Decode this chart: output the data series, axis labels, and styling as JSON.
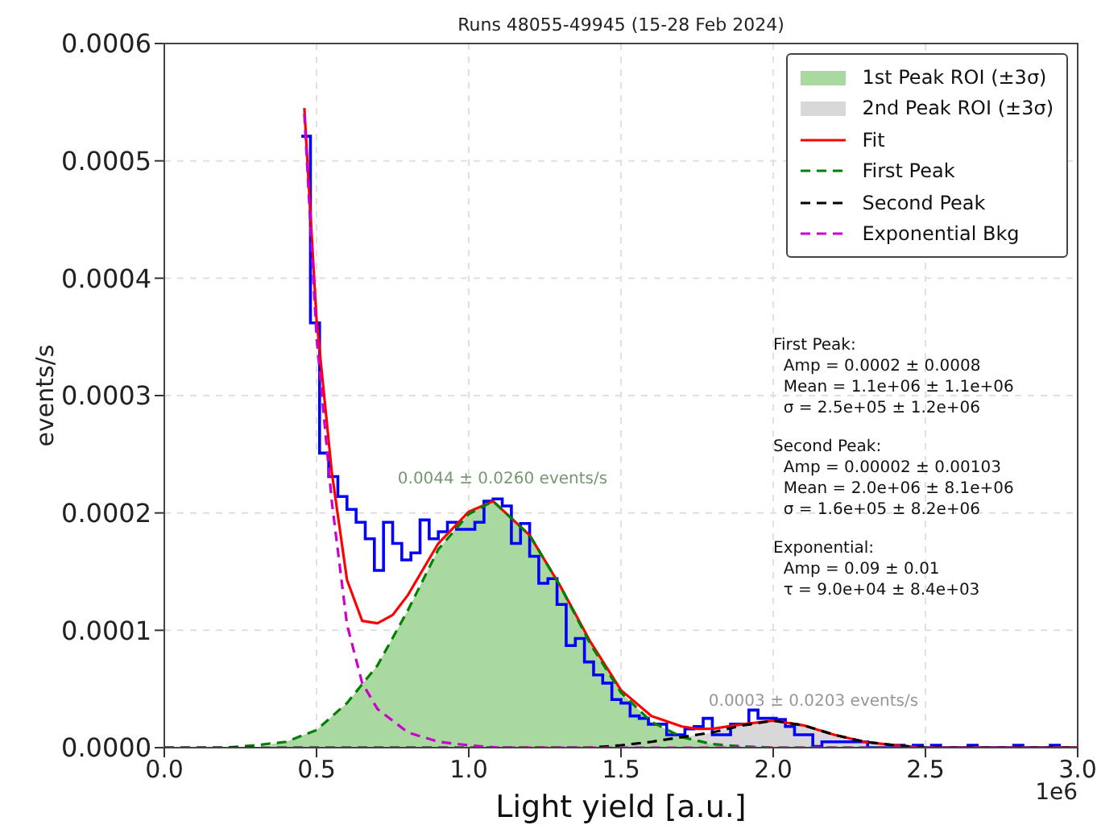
{
  "chart_data": {
    "type": "histogram",
    "title": "Runs 48055-49945 (15-28 Feb 2024)",
    "xlabel": "Light yield [a.u.]",
    "ylabel": "events/s",
    "bins": [
      0.45,
      0.48,
      0.51,
      0.54,
      0.57,
      0.6,
      0.63,
      0.66,
      0.69,
      0.72,
      0.75,
      0.78,
      0.81,
      0.84,
      0.87,
      0.9,
      0.93,
      0.96,
      0.99,
      1.02,
      1.05,
      1.08,
      1.11,
      1.14,
      1.17,
      1.2,
      1.23,
      1.26,
      1.29,
      1.32,
      1.35,
      1.38,
      1.41,
      1.44,
      1.47,
      1.5,
      1.53,
      1.56,
      1.59,
      1.62,
      1.65,
      1.68,
      1.71,
      1.74,
      1.77,
      1.8,
      1.83,
      1.86,
      1.89,
      1.92,
      1.95,
      1.98,
      2.01,
      2.04,
      2.07,
      2.1,
      2.13,
      2.16,
      2.19,
      2.22,
      2.25,
      2.28,
      2.31,
      2.34,
      2.37,
      2.4,
      2.43,
      2.46,
      2.49,
      2.52,
      2.55,
      2.58,
      2.61,
      2.64,
      2.67,
      2.7,
      2.73,
      2.76,
      2.79,
      2.82,
      2.85,
      2.88,
      2.91,
      2.94,
      2.97,
      3.0
    ],
    "values": [
      0.000521,
      0.000362,
      0.000251,
      0.000231,
      0.000214,
      0.000203,
      0.000192,
      0.000178,
      0.000151,
      0.000192,
      0.000174,
      0.00016,
      0.000166,
      0.000194,
      0.000178,
      0.000184,
      0.000192,
      0.000186,
      0.000186,
      0.000192,
      0.00021,
      0.000212,
      0.000206,
      0.000174,
      0.000191,
      0.000163,
      0.00014,
      0.000144,
      0.000122,
      8.7e-05,
      9.3e-05,
      7.3e-05,
      6.2e-05,
      5.5e-05,
      4.1e-05,
      3.8e-05,
      2.7e-05,
      2.5e-05,
      2e-05,
      2e-05,
      1.1e-05,
      1.1e-05,
      1.6e-05,
      1.8e-05,
      2.5e-05,
      1.1e-05,
      1.1e-05,
      2e-05,
      2e-05,
      3.2e-05,
      2.5e-05,
      2.5e-05,
      2.4e-05,
      1.8e-05,
      1.1e-05,
      1.1e-05,
      1e-06,
      5e-06,
      5e-06,
      5e-06,
      5e-06,
      5e-06,
      0,
      0,
      0,
      2e-06,
      0,
      2e-06,
      0,
      2e-06,
      0,
      0,
      0,
      2e-06,
      0,
      0,
      0,
      0,
      2e-06,
      0,
      0,
      0,
      2e-06,
      0,
      0
    ],
    "color": "#0000ff",
    "series": [
      {
        "name": "1st Peak ROI (±3σ)",
        "type": "area",
        "color": "#a9d8a0",
        "x": [
          0.35,
          0.4,
          0.5,
          0.6,
          0.7,
          0.8,
          0.9,
          1.0,
          1.08,
          1.2,
          1.3,
          1.4,
          1.5,
          1.6,
          1.7,
          1.8,
          1.85
        ],
        "values": [
          3e-06,
          5e-06,
          1.5e-05,
          3.8e-05,
          7e-05,
          0.000117,
          0.000169,
          0.000199,
          0.00021,
          0.000181,
          0.000138,
          8.8e-05,
          4.7e-05,
          2.2e-05,
          9e-06,
          3e-06,
          2e-06
        ]
      },
      {
        "name": "2nd Peak ROI (±3σ)",
        "type": "area",
        "color": "#d8d8d8",
        "x": [
          1.7,
          1.8,
          1.9,
          2.0,
          2.1,
          2.2,
          2.3,
          2.4,
          2.48
        ],
        "values": [
          9e-06,
          1.3e-05,
          1.9e-05,
          2.3e-05,
          1.9e-05,
          1.1e-05,
          5e-06,
          2e-06,
          1e-06
        ]
      },
      {
        "name": "Fit",
        "type": "line",
        "line_style": "solid",
        "color": "#ff0000",
        "x": [
          0.46,
          0.5,
          0.55,
          0.6,
          0.65,
          0.7,
          0.75,
          0.8,
          0.9,
          1.0,
          1.08,
          1.2,
          1.3,
          1.4,
          1.5,
          1.6,
          1.7,
          1.75,
          1.8,
          1.9,
          2.0,
          2.1,
          2.2,
          2.3,
          2.4,
          2.5,
          3.0
        ],
        "values": [
          0.000545,
          0.000365,
          0.000235,
          0.000143,
          0.000108,
          0.000106,
          0.000113,
          0.00013,
          0.000174,
          0.000201,
          0.00021,
          0.000181,
          0.000138,
          9e-05,
          4.9e-05,
          2.7e-05,
          1.8e-05,
          1.6e-05,
          1.6e-05,
          2e-05,
          2.3e-05,
          1.9e-05,
          1.1e-05,
          5e-06,
          2e-06,
          0,
          0
        ]
      },
      {
        "name": "First Peak",
        "type": "line",
        "line_style": "dashed",
        "color": "#008000",
        "x": [
          0,
          0.2,
          0.3,
          0.4,
          0.5,
          0.6,
          0.7,
          0.8,
          0.9,
          1.0,
          1.08,
          1.2,
          1.3,
          1.4,
          1.5,
          1.6,
          1.7,
          1.8,
          1.9,
          2.0,
          3.0
        ],
        "values": [
          0,
          0,
          2e-06,
          5e-06,
          1.5e-05,
          3.8e-05,
          7e-05,
          0.000117,
          0.000169,
          0.000199,
          0.00021,
          0.000181,
          0.000138,
          8.8e-05,
          4.7e-05,
          2.2e-05,
          9e-06,
          3e-06,
          1e-06,
          0,
          0
        ]
      },
      {
        "name": "Second Peak",
        "type": "line",
        "line_style": "dashed",
        "color": "#000000",
        "x": [
          0,
          1.4,
          1.5,
          1.6,
          1.7,
          1.8,
          1.9,
          2.0,
          2.1,
          2.2,
          2.3,
          2.4,
          2.5,
          3.0
        ],
        "values": [
          0,
          0,
          2e-06,
          5e-06,
          9e-06,
          1.3e-05,
          1.9e-05,
          2.3e-05,
          1.9e-05,
          1.1e-05,
          5e-06,
          2e-06,
          0,
          0
        ]
      },
      {
        "name": "Exponential Bkg",
        "type": "line",
        "line_style": "dashed",
        "color": "#cc00cc",
        "x": [
          0.46,
          0.5,
          0.55,
          0.6,
          0.65,
          0.7,
          0.8,
          0.9,
          1.0,
          1.1,
          3.0
        ],
        "values": [
          0.00054,
          0.00035,
          0.00021,
          0.000105,
          5.5e-05,
          3.3e-05,
          1.3e-05,
          5e-06,
          2e-06,
          0,
          0
        ]
      }
    ],
    "xlim": [
      0,
      3
    ],
    "xticks": [
      {
        "value": 0,
        "label": "0.0"
      },
      0.5,
      {
        "value": 1,
        "label": "1.0"
      },
      1.5,
      {
        "value": 2,
        "label": "2.0"
      },
      2.5,
      {
        "value": 3,
        "label": "3.0"
      }
    ],
    "ylim": [
      0,
      0.0006
    ],
    "yticks": [
      {
        "value": 0,
        "label": "0.0000"
      },
      0.0001,
      0.0002,
      0.0003,
      0.0004,
      0.0005,
      0.0006
    ],
    "grid": true,
    "legend": "top right",
    "annotations": [
      "0.0044 ± 0.0260 events/s",
      "0.0003 ± 0.0203 events/s",
      "First Peak:\n  Amp = 0.0002 ± 0.0008\n  Mean = 1.1e+06 ± 1.1e+06\n  σ = 2.5e+05 ± 1.2e+06",
      "Second Peak:\n  Amp = 0.00002 ± 0.00103\n  Mean = 2.0e+06 ± 8.1e+06\n  σ = 1.6e+05 ± 8.2e+06",
      "Exponential:\n  Amp = 0.09 ± 0.01\n  τ = 9.0e+04 ± 8.4e+03",
      "1e6"
    ]
  }
}
